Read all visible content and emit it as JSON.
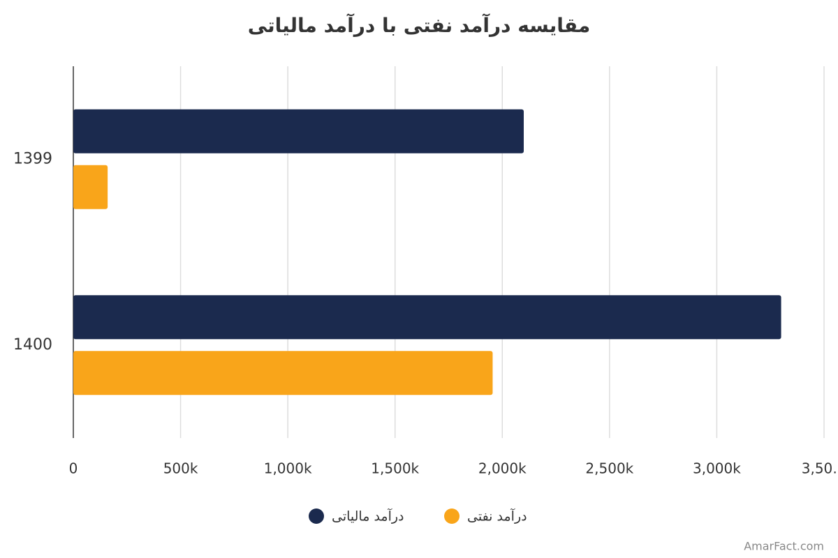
{
  "chart_data": {
    "type": "bar",
    "orientation": "horizontal",
    "title": "مقایسه درآمد نفتی با درآمد مالیاتی",
    "categories": [
      "1399",
      "1400"
    ],
    "series": [
      {
        "name": "درآمد مالیاتی",
        "color": "#1b2a4e",
        "values": [
          2100000,
          3300000
        ]
      },
      {
        "name": "درآمد نفتی",
        "color": "#f9a51a",
        "values": [
          160000,
          1955000
        ]
      }
    ],
    "xlim": [
      0,
      3500000
    ],
    "xticks": [
      0,
      {
        "value": 500000,
        "label": "500k"
      },
      {
        "value": 1000000,
        "label": "1,000k"
      },
      {
        "value": 1500000,
        "label": "1,500k"
      },
      {
        "value": 2000000,
        "label": "2,000k"
      },
      {
        "value": 2500000,
        "label": "2,500k"
      },
      {
        "value": 3000000,
        "label": "3,000k"
      },
      {
        "value": 3500000,
        "label": "3,50…"
      }
    ],
    "grid": true,
    "legend": "bottom",
    "watermark": "AmarFact.com"
  }
}
